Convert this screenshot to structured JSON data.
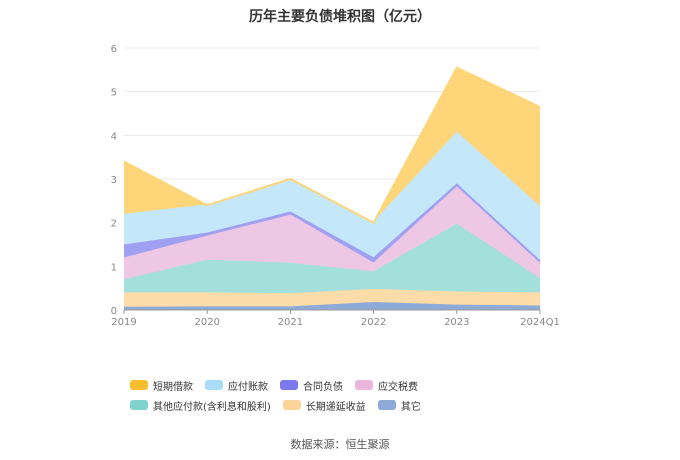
{
  "chart_data": {
    "type": "area",
    "stacked": true,
    "title": "历年主要负债堆积图（亿元）",
    "categories": [
      "2019",
      "2020",
      "2021",
      "2022",
      "2023",
      "2024Q1"
    ],
    "ylim": [
      0,
      6
    ],
    "yticks": [
      "0",
      "1",
      "2",
      "3",
      "4",
      "5",
      "6"
    ],
    "grid": true,
    "legend_position": "bottom",
    "series": [
      {
        "name": "其它",
        "color": "#8eaad8",
        "values": [
          0.05,
          0.06,
          0.06,
          0.16,
          0.1,
          0.08
        ]
      },
      {
        "name": "长期递延收益",
        "color": "#fcdca8",
        "values": [
          0.33,
          0.32,
          0.3,
          0.3,
          0.3,
          0.3
        ]
      },
      {
        "name": "其他应付款(含利息和股利)",
        "color": "#a3e0dc",
        "values": [
          0.3,
          0.75,
          0.7,
          0.4,
          1.55,
          0.32
        ]
      },
      {
        "name": "应交税费",
        "color": "#edc7e3",
        "values": [
          0.5,
          0.55,
          1.1,
          0.2,
          0.85,
          0.35
        ]
      },
      {
        "name": "合同负债",
        "color": "#a0a0f2",
        "values": [
          0.3,
          0.07,
          0.07,
          0.12,
          0.07,
          0.06
        ]
      },
      {
        "name": "应付账款",
        "color": "#c5e7fa",
        "values": [
          0.7,
          0.65,
          0.77,
          0.82,
          1.18,
          1.24
        ]
      },
      {
        "name": "短期借款",
        "color": "#ffd57a",
        "values": [
          1.22,
          0.0,
          0.0,
          0.0,
          1.5,
          2.3
        ]
      }
    ]
  },
  "legend": {
    "items": [
      {
        "label": "短期借款",
        "color": "#fbbf2d"
      },
      {
        "label": "应付账款",
        "color": "#a9dcf7"
      },
      {
        "label": "合同负债",
        "color": "#7a7aee"
      },
      {
        "label": "应交税费",
        "color": "#ebb6dd"
      },
      {
        "label": "其他应付款(含利息和股利)",
        "color": "#7fd3cf"
      },
      {
        "label": "长期递延收益",
        "color": "#fad497"
      },
      {
        "label": "其它",
        "color": "#8eaad8"
      }
    ]
  },
  "source": "数据来源：恒生聚源"
}
